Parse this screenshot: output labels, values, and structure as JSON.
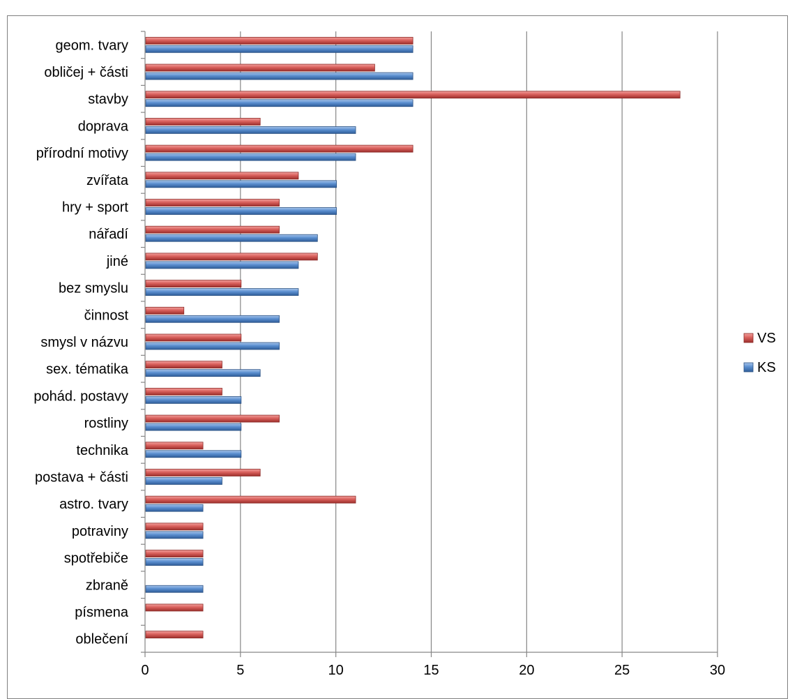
{
  "chart_data": {
    "type": "bar",
    "orientation": "horizontal",
    "categories": [
      "geom. tvary",
      "obličej + části",
      "stavby",
      "doprava",
      "přírodní motivy",
      "zvířata",
      "hry + sport",
      "nářadí",
      "jiné",
      "bez smyslu",
      "činnost",
      "smysl v názvu",
      "sex. tématika",
      "pohád. postavy",
      "rostliny",
      "technika",
      "postava + části",
      "astro. tvary",
      "potraviny",
      "spotřebiče",
      "zbraně",
      "písmena",
      "oblečení"
    ],
    "series": [
      {
        "name": "VS",
        "color": "#c0504d",
        "values": [
          14,
          12,
          28,
          6,
          14,
          8,
          7,
          7,
          9,
          5,
          2,
          5,
          4,
          4,
          7,
          3,
          6,
          11,
          3,
          3,
          0,
          3,
          3
        ]
      },
      {
        "name": "KS",
        "color": "#4f81bd",
        "values": [
          14,
          14,
          14,
          11,
          11,
          10,
          10,
          9,
          8,
          8,
          7,
          7,
          6,
          5,
          5,
          5,
          4,
          3,
          3,
          3,
          3,
          0,
          0
        ]
      }
    ],
    "xlim": [
      0,
      30
    ],
    "xticks": [
      "0",
      "5",
      "10",
      "15",
      "20",
      "25",
      "30"
    ],
    "grid": true,
    "legend": "right"
  }
}
